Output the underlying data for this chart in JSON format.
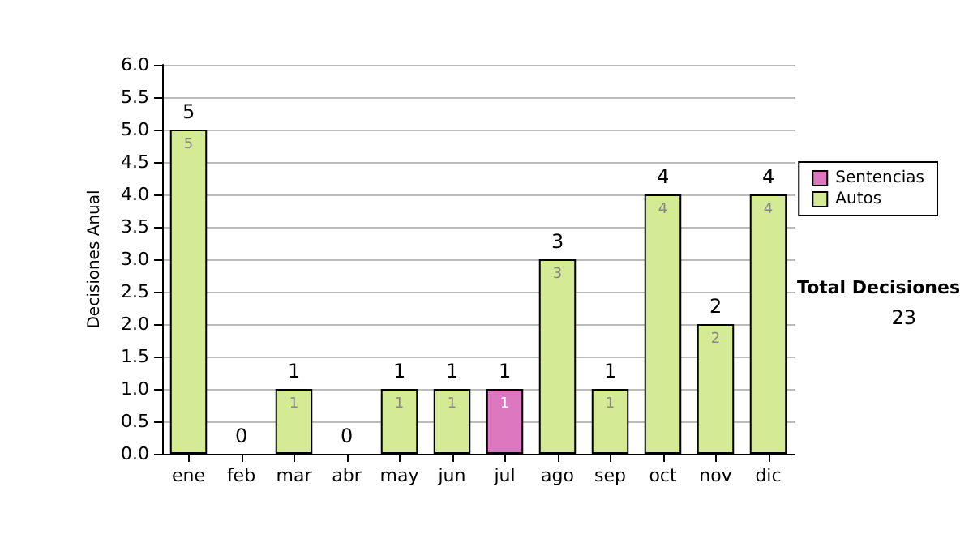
{
  "chart_data": {
    "type": "bar",
    "stacked": true,
    "ylabel": "Decisiones Anual",
    "categories": [
      "ene",
      "feb",
      "mar",
      "abr",
      "may",
      "jun",
      "jul",
      "ago",
      "sep",
      "oct",
      "nov",
      "dic"
    ],
    "series": [
      {
        "name": "Sentencias",
        "color": "#dd77c0",
        "values": [
          0,
          0,
          0,
          0,
          0,
          0,
          1,
          0,
          0,
          0,
          0,
          0
        ],
        "value_labels": [
          null,
          null,
          null,
          null,
          null,
          null,
          "1",
          null,
          null,
          null,
          null,
          null
        ]
      },
      {
        "name": "Autos",
        "color": "#d4ea94",
        "values": [
          5,
          0,
          1,
          0,
          1,
          1,
          0,
          3,
          1,
          4,
          2,
          4
        ],
        "value_labels": [
          "5",
          null,
          "1",
          null,
          "1",
          "1",
          null,
          "3",
          "1",
          "4",
          "2",
          "4"
        ]
      }
    ],
    "totals": [
      "5",
      "0",
      "1",
      "0",
      "1",
      "1",
      "1",
      "3",
      "1",
      "4",
      "2",
      "4"
    ],
    "ylim": [
      0,
      6
    ],
    "yticks": [
      {
        "value": 0,
        "label": "0.0"
      },
      {
        "value": 0.5,
        "label": "0.5"
      },
      {
        "value": 1,
        "label": "1.0"
      },
      {
        "value": 1.5,
        "label": "1.5"
      },
      {
        "value": 2,
        "label": "2.0"
      },
      {
        "value": 2.5,
        "label": "2.5"
      },
      {
        "value": 3,
        "label": "3.0"
      },
      {
        "value": 3.5,
        "label": "3.5"
      },
      {
        "value": 4,
        "label": "4.0"
      },
      {
        "value": 4.5,
        "label": "4.5"
      },
      {
        "value": 5,
        "label": "5.0"
      },
      {
        "value": 5.5,
        "label": "5.5"
      },
      {
        "value": 6,
        "label": "6.0"
      }
    ],
    "grid": "y",
    "legend": "right",
    "annotations": [
      "Total Decisiones",
      "23"
    ]
  }
}
